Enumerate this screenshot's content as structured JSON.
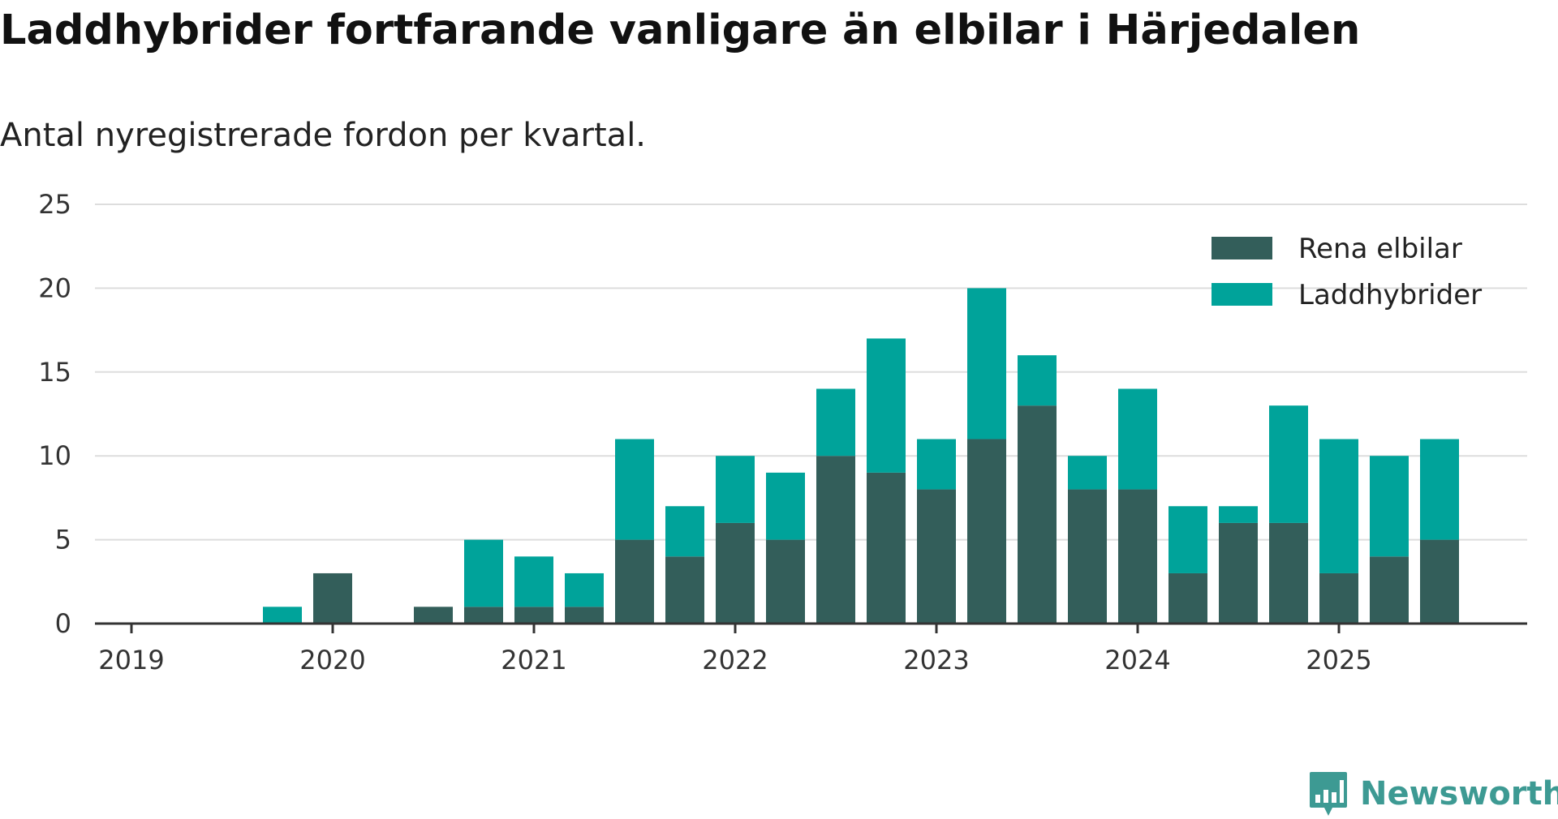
{
  "title": "Laddhybrider fortfarande vanligare än elbilar i Härjedalen",
  "subtitle": "Antal nyregistrerade fordon per kvartal.",
  "logo_text": "Newsworthy",
  "colors": {
    "elbilar": "#335e5a",
    "laddhybrider": "#00a39a",
    "grid": "#dddddd",
    "axis": "#333333"
  },
  "chart_data": {
    "type": "bar",
    "stacked": true,
    "title": "Laddhybrider fortfarande vanligare än elbilar i Härjedalen",
    "subtitle": "Antal nyregistrerade fordon per kvartal.",
    "xlabel": "",
    "ylabel": "",
    "ylim": [
      0,
      25
    ],
    "yticks": [
      "0",
      "5",
      "10",
      "15",
      "20",
      "25"
    ],
    "xticks": [
      "2019",
      "2020",
      "2021",
      "2022",
      "2023",
      "2024",
      "2025"
    ],
    "legend_position": "top-right",
    "grid": true,
    "categories": [
      "2019 Q1",
      "2019 Q2",
      "2019 Q3",
      "2019 Q4",
      "2020 Q1",
      "2020 Q2",
      "2020 Q3",
      "2020 Q4",
      "2021 Q1",
      "2021 Q2",
      "2021 Q3",
      "2021 Q4",
      "2022 Q1",
      "2022 Q2",
      "2022 Q3",
      "2022 Q4",
      "2023 Q1",
      "2023 Q2",
      "2023 Q3",
      "2023 Q4",
      "2024 Q1",
      "2024 Q2",
      "2024 Q3",
      "2024 Q4",
      "2025 Q1",
      "2025 Q2",
      "2025 Q3"
    ],
    "series": [
      {
        "name": "Rena elbilar",
        "values": [
          0,
          0,
          0,
          0,
          3,
          0,
          1,
          1,
          1,
          1,
          5,
          4,
          6,
          5,
          10,
          9,
          8,
          11,
          13,
          8,
          8,
          3,
          6,
          6,
          3,
          4,
          5
        ]
      },
      {
        "name": "Laddhybrider",
        "values": [
          0,
          0,
          0,
          1,
          0,
          0,
          0,
          4,
          3,
          2,
          6,
          3,
          4,
          4,
          4,
          8,
          3,
          9,
          3,
          2,
          6,
          4,
          1,
          7,
          8,
          6,
          6
        ]
      }
    ]
  }
}
